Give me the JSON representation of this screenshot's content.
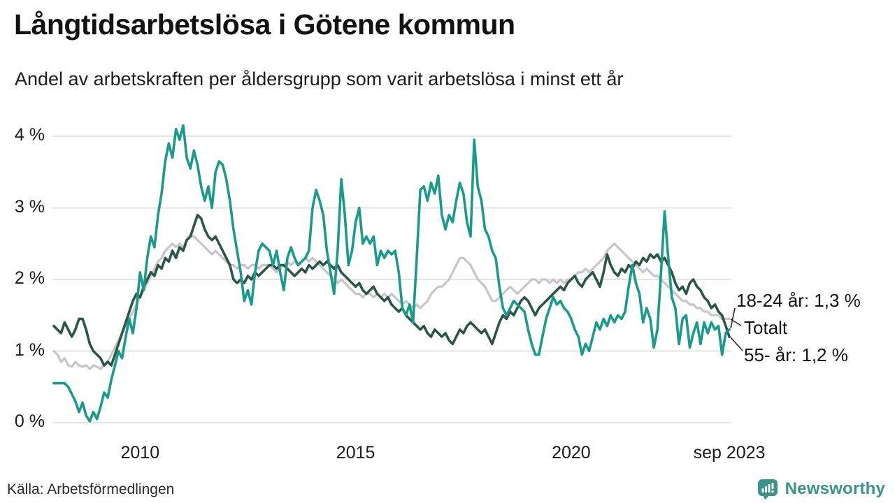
{
  "header": {
    "title": "Långtidsarbetslösa i Götene kommun",
    "subtitle": "Andel av arbetskraften per åldersgrupp som varit arbetslösa i minst ett år"
  },
  "footer": {
    "source": "Källa: Arbetsförmedlingen",
    "brand_name": "Newsworthy",
    "brand_icon": "newsworthy-speech-bubble-bar-chart-icon",
    "brand_color": "#3c938b"
  },
  "chart_data": {
    "type": "line",
    "title": "Långtidsarbetslösa i Götene kommun",
    "subtitle": "Andel av arbetskraften per åldersgrupp som varit arbetslösa i minst ett år",
    "x_unit": "month",
    "x_start_year": 2008.0,
    "x_step_years": 0.0833333,
    "xlim": [
      2008.0,
      2023.75
    ],
    "ylim": [
      0,
      4.3
    ],
    "grid": "horizontal",
    "legend_position": "end-of-line-labels",
    "colors": {
      "young": "#1a9a8a",
      "total": "#c6c5cb",
      "old": "#2d5448",
      "gridline": "#e4e4e4",
      "leader": "#222222"
    },
    "y_ticks": [
      {
        "label": "4 %",
        "value": 4
      },
      {
        "label": "3 %",
        "value": 3
      },
      {
        "label": "2 %",
        "value": 2
      },
      {
        "label": "1 %",
        "value": 1
      },
      {
        "label": "0 %",
        "value": 0
      }
    ],
    "x_ticks": [
      {
        "label": "2010",
        "year": 2010.0
      },
      {
        "label": "2015",
        "year": 2015.0
      },
      {
        "label": "2020",
        "year": 2020.0
      },
      {
        "label": "sep 2023",
        "year": 2023.6667
      }
    ],
    "series": [
      {
        "name": "Totalt",
        "color": "#c6c5cb",
        "width": 3.2,
        "values": [
          1.0,
          0.95,
          0.85,
          0.9,
          0.8,
          0.78,
          0.85,
          0.8,
          0.78,
          0.8,
          0.75,
          0.8,
          0.78,
          0.75,
          0.8,
          0.85,
          0.95,
          1.05,
          1.15,
          1.25,
          1.35,
          1.45,
          1.55,
          1.65,
          1.75,
          1.85,
          1.95,
          2.05,
          2.15,
          2.25,
          2.3,
          2.4,
          2.45,
          2.5,
          2.45,
          2.5,
          2.45,
          2.55,
          2.62,
          2.6,
          2.55,
          2.5,
          2.45,
          2.4,
          2.35,
          2.4,
          2.35,
          2.3,
          2.25,
          2.2,
          2.2,
          2.15,
          2.2,
          2.2,
          2.15,
          2.2,
          2.2,
          2.15,
          2.2,
          2.2,
          2.2,
          2.15,
          2.1,
          2.15,
          2.2,
          2.25,
          2.2,
          2.25,
          2.2,
          2.25,
          2.3,
          2.25,
          2.3,
          2.25,
          2.2,
          2.15,
          2.1,
          2.05,
          2.0,
          1.95,
          2.0,
          1.95,
          1.9,
          1.85,
          1.8,
          1.8,
          1.75,
          1.8,
          1.8,
          1.75,
          1.8,
          1.75,
          1.8,
          1.75,
          1.8,
          1.75,
          1.7,
          1.65,
          1.7,
          1.65,
          1.6,
          1.65,
          1.6,
          1.65,
          1.7,
          1.8,
          1.85,
          1.9,
          1.9,
          1.95,
          2.0,
          2.1,
          2.2,
          2.3,
          2.3,
          2.25,
          2.2,
          2.1,
          2.0,
          1.95,
          1.9,
          1.8,
          1.7,
          1.7,
          1.75,
          1.8,
          1.85,
          1.9,
          1.85,
          1.8,
          1.85,
          1.9,
          1.95,
          2.0,
          2.0,
          1.95,
          2.0,
          2.0,
          1.95,
          2.0,
          1.95,
          2.0,
          1.95,
          2.0,
          2.0,
          2.05,
          2.1,
          2.1,
          2.15,
          2.1,
          2.15,
          2.2,
          2.25,
          2.3,
          2.4,
          2.45,
          2.5,
          2.45,
          2.4,
          2.35,
          2.3,
          2.25,
          2.2,
          2.15,
          2.1,
          2.15,
          2.1,
          2.05,
          2.05,
          2.0,
          1.95,
          1.9,
          1.85,
          1.8,
          1.75,
          1.7,
          1.7,
          1.65,
          1.65,
          1.6,
          1.6,
          1.55,
          1.55,
          1.5,
          1.5,
          1.5,
          1.45,
          1.45,
          1.45
        ]
      },
      {
        "name": "55- år",
        "color": "#2d5448",
        "width": 3.6,
        "values": [
          1.35,
          1.3,
          1.25,
          1.4,
          1.3,
          1.2,
          1.3,
          1.45,
          1.45,
          1.3,
          1.1,
          1.0,
          0.95,
          0.9,
          0.8,
          0.85,
          0.8,
          0.95,
          1.1,
          1.25,
          1.4,
          1.55,
          1.7,
          1.8,
          1.75,
          1.9,
          2.0,
          2.1,
          2.05,
          2.2,
          2.15,
          2.3,
          2.25,
          2.4,
          2.3,
          2.45,
          2.4,
          2.55,
          2.6,
          2.75,
          2.9,
          2.85,
          2.7,
          2.6,
          2.55,
          2.6,
          2.5,
          2.4,
          2.3,
          2.2,
          2.0,
          1.95,
          2.0,
          1.95,
          2.05,
          2.0,
          2.1,
          2.05,
          2.1,
          2.15,
          2.2,
          2.2,
          2.15,
          2.2,
          2.2,
          2.15,
          2.1,
          2.05,
          2.1,
          2.15,
          2.1,
          2.2,
          2.15,
          2.2,
          2.25,
          2.2,
          2.25,
          2.2,
          2.15,
          2.2,
          2.1,
          2.05,
          2.0,
          1.95,
          1.9,
          1.95,
          1.85,
          1.8,
          1.85,
          1.9,
          1.8,
          1.75,
          1.7,
          1.75,
          1.65,
          1.6,
          1.55,
          1.6,
          1.5,
          1.45,
          1.4,
          1.35,
          1.3,
          1.35,
          1.25,
          1.2,
          1.3,
          1.25,
          1.2,
          1.25,
          1.15,
          1.1,
          1.2,
          1.3,
          1.25,
          1.35,
          1.4,
          1.35,
          1.3,
          1.25,
          1.3,
          1.2,
          1.1,
          1.25,
          1.4,
          1.5,
          1.45,
          1.55,
          1.5,
          1.6,
          1.7,
          1.75,
          1.7,
          1.6,
          1.5,
          1.6,
          1.65,
          1.7,
          1.75,
          1.8,
          1.85,
          1.9,
          1.85,
          1.95,
          2.0,
          2.05,
          1.95,
          1.9,
          2.0,
          2.05,
          2.1,
          2.0,
          1.9,
          2.1,
          2.35,
          2.2,
          2.1,
          2.05,
          2.15,
          2.1,
          2.2,
          2.15,
          2.25,
          2.2,
          2.3,
          2.25,
          2.35,
          2.3,
          2.35,
          2.25,
          2.3,
          2.2,
          2.1,
          1.95,
          1.85,
          1.9,
          1.8,
          1.95,
          2.0,
          1.9,
          1.85,
          1.75,
          1.7,
          1.6,
          1.65,
          1.55,
          1.5,
          1.35,
          1.2
        ]
      },
      {
        "name": "18-24 år",
        "color": "#1a9a8a",
        "width": 3.6,
        "values": [
          0.55,
          0.55,
          0.55,
          0.55,
          0.5,
          0.4,
          0.3,
          0.15,
          0.28,
          0.1,
          0.02,
          0.15,
          0.05,
          0.22,
          0.42,
          0.35,
          0.6,
          0.8,
          1.0,
          0.9,
          1.2,
          1.45,
          1.25,
          1.6,
          2.1,
          1.85,
          2.3,
          2.6,
          2.45,
          2.9,
          3.2,
          3.65,
          3.9,
          3.7,
          4.1,
          3.95,
          4.15,
          3.7,
          3.55,
          3.8,
          3.6,
          3.3,
          3.1,
          3.3,
          3.0,
          3.5,
          3.65,
          3.6,
          3.4,
          3.1,
          2.7,
          2.4,
          2.1,
          1.7,
          1.85,
          1.65,
          2.1,
          2.4,
          2.5,
          2.45,
          2.4,
          2.2,
          2.4,
          2.1,
          1.85,
          2.3,
          2.45,
          2.3,
          2.2,
          2.25,
          2.3,
          2.4,
          3.0,
          3.25,
          3.1,
          2.9,
          2.4,
          2.1,
          1.8,
          2.4,
          3.4,
          2.9,
          2.2,
          2.4,
          2.8,
          3.0,
          2.5,
          2.6,
          2.5,
          2.6,
          2.2,
          2.4,
          2.3,
          2.4,
          2.35,
          2.4,
          2.1,
          1.6,
          1.5,
          1.65,
          1.4,
          2.3,
          3.25,
          3.3,
          3.1,
          3.35,
          3.2,
          3.45,
          2.9,
          2.7,
          2.9,
          2.8,
          3.1,
          3.35,
          3.2,
          2.8,
          2.6,
          3.95,
          3.3,
          3.1,
          2.7,
          2.6,
          2.4,
          2.3,
          1.9,
          1.6,
          1.5,
          1.6,
          1.7,
          1.65,
          1.6,
          1.55,
          1.3,
          1.1,
          0.95,
          0.95,
          1.2,
          1.45,
          1.6,
          1.75,
          1.65,
          1.7,
          1.6,
          1.55,
          1.45,
          1.3,
          1.2,
          0.95,
          1.1,
          1.0,
          1.2,
          1.4,
          1.3,
          1.45,
          1.35,
          1.5,
          1.4,
          1.5,
          1.45,
          1.55,
          1.9,
          2.2,
          1.95,
          1.8,
          1.4,
          1.6,
          1.45,
          1.05,
          1.3,
          2.1,
          2.95,
          2.3,
          1.75,
          1.6,
          1.1,
          1.45,
          1.5,
          1.05,
          1.25,
          1.4,
          1.1,
          1.4,
          1.25,
          1.4,
          1.3,
          1.35,
          0.95,
          1.25,
          1.3
        ]
      }
    ],
    "annotations": [
      {
        "text": "18-24 år: 1,3 %",
        "series": "18-24 år",
        "end_value": 1.3
      },
      {
        "text": "Totalt",
        "series": "Totalt",
        "end_value": 1.45
      },
      {
        "text": "55- år: 1,2 %",
        "series": "55- år",
        "end_value": 1.2
      }
    ]
  }
}
